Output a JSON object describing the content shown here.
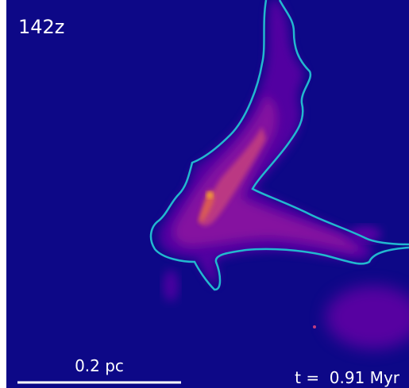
{
  "label": "142z",
  "scale_bar": {
    "label": "0.2 pc"
  },
  "time": "t =  0.91 Myr"
}
